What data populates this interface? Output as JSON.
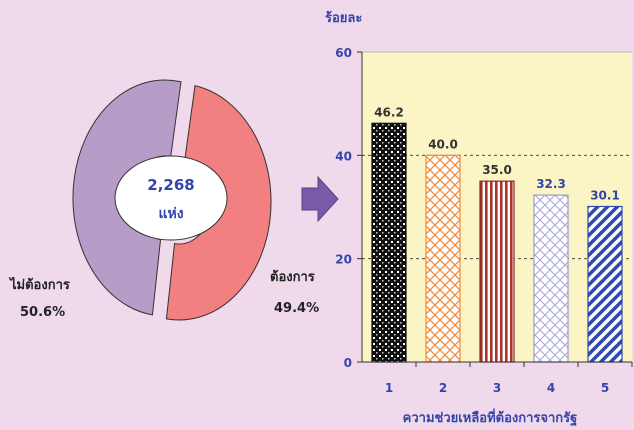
{
  "chart_data": [
    {
      "type": "pie",
      "center_label": {
        "value": "2,268",
        "unit": "แห่ง"
      },
      "slices": [
        {
          "label": "ไม่ต้องการ",
          "percent_label": "50.6%",
          "value": 50.6,
          "color": "#b89cc8"
        },
        {
          "label": "ต้องการ",
          "percent_label": "49.4%",
          "value": 49.4,
          "color": "#f28080"
        }
      ]
    },
    {
      "type": "bar",
      "ylabel": "ร้อยละ",
      "xlabel": "ความช่วยเหลือที่ต้องการจากรัฐ",
      "categories": [
        "1",
        "2",
        "3",
        "4",
        "5"
      ],
      "values": [
        46.2,
        40.0,
        35.0,
        32.3,
        30.1
      ],
      "value_labels": [
        "46.2",
        "40.0",
        "35.0",
        "32.3",
        "30.1"
      ],
      "ylim": [
        0,
        60
      ],
      "yticks": [
        "0",
        "20",
        "40",
        "60"
      ],
      "grid": true,
      "plot_background": "#fbf4c4"
    }
  ]
}
